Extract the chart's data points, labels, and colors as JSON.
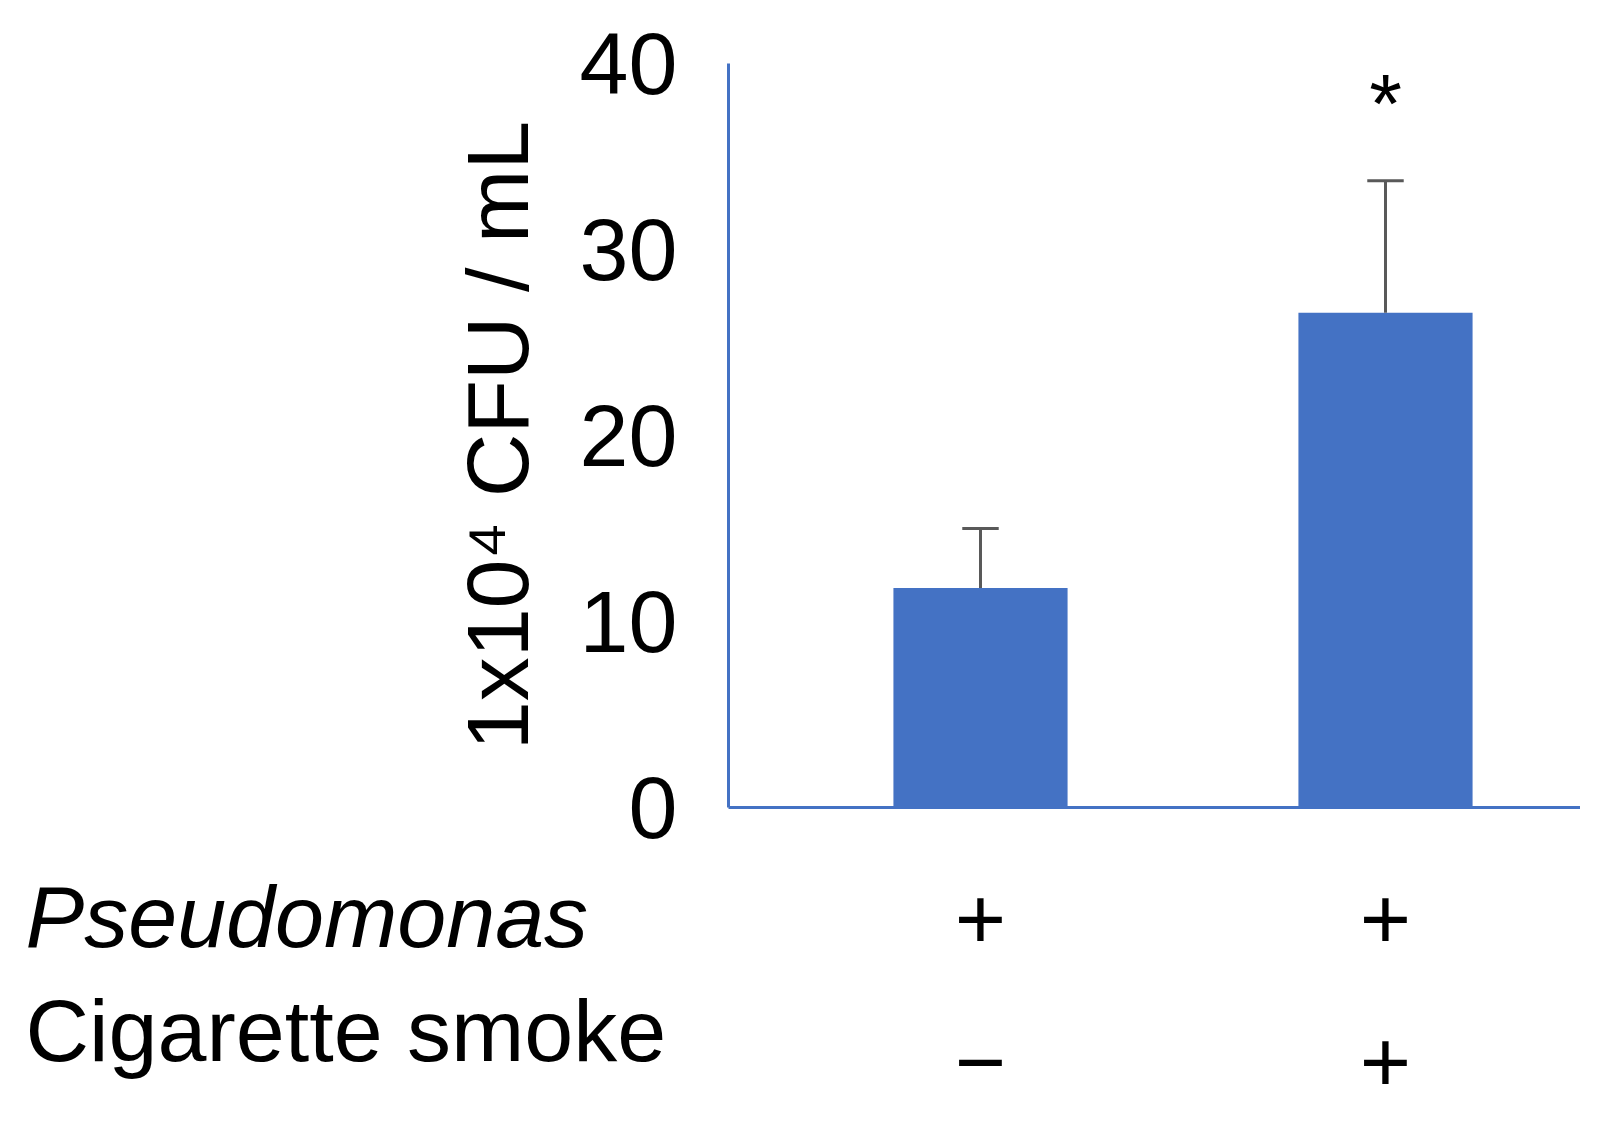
{
  "chart_data": {
    "type": "bar",
    "ylabel": "1x10⁴ CFU / mL",
    "categories": [
      "+\n−",
      "+\n+"
    ],
    "values": [
      11.8,
      26.6
    ],
    "errors": [
      3.2,
      7.1
    ],
    "color": "#4472c4",
    "ylim": [
      0,
      40
    ],
    "yticks": [
      0,
      10,
      20,
      30,
      40
    ],
    "grid": false,
    "annotations": [
      "*",
      "Pseudomonas",
      "Cigarette smoke"
    ]
  }
}
